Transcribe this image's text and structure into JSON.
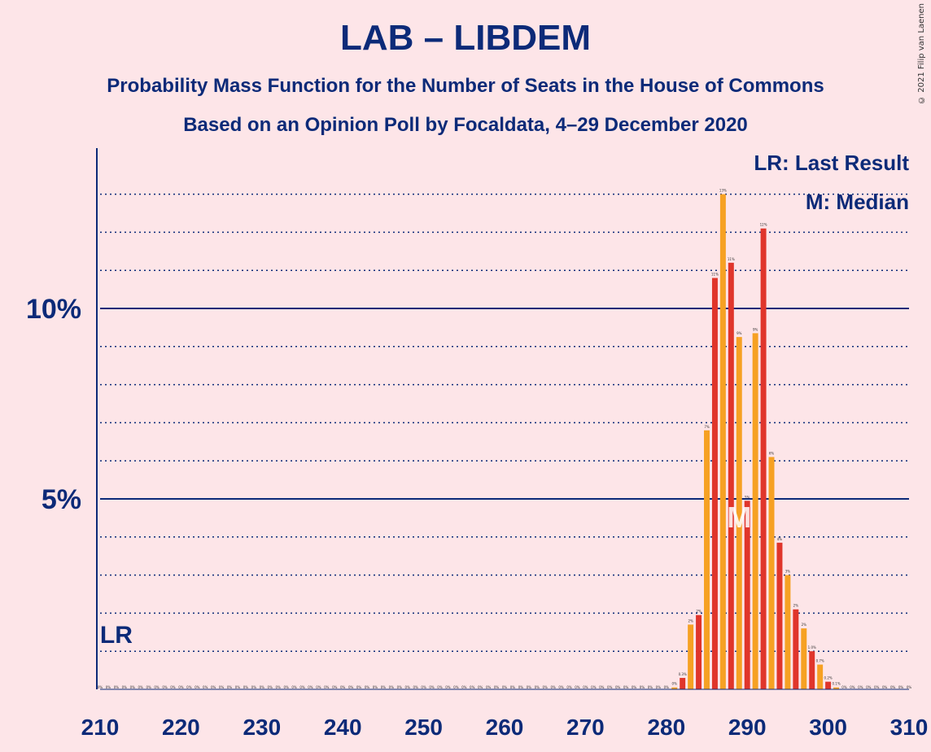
{
  "header": {
    "title": "LAB – LIBDEM",
    "subtitle": "Probability Mass Function for the Number of Seats in the House of Commons",
    "source": "Based on an Opinion Poll by Focaldata, 4–29 December 2020",
    "copyright": "© 2021 Filip van Laenen"
  },
  "legend": {
    "last_result": "LR: Last Result",
    "median": "M: Median"
  },
  "markers": {
    "last_result_label": "LR",
    "last_result_seat": 212,
    "median_label": "M",
    "median_seat": 289
  },
  "colors": {
    "bar_a": "#F6A123",
    "bar_b": "#E0352B",
    "axis": "#0C2A78",
    "background": "#FDE5E8"
  },
  "chart_data": {
    "type": "bar",
    "title": "LAB – LIBDEM",
    "x_min": 210,
    "x_max": 310,
    "x_ticks": [
      "210",
      "220",
      "230",
      "240",
      "250",
      "260",
      "270",
      "280",
      "290",
      "300",
      "310"
    ],
    "y_ticks": [
      {
        "value": 5,
        "label": "5%"
      },
      {
        "value": 10,
        "label": "10%"
      }
    ],
    "ylim": [
      0,
      14
    ],
    "grid": "dotted every 1%, solid at 5% and 10%",
    "legend_position": "top-right",
    "seats": [
      281,
      282,
      283,
      284,
      285,
      286,
      287,
      288,
      289,
      290,
      291,
      292,
      293,
      294,
      295,
      296,
      297,
      298,
      299,
      300,
      301
    ],
    "values": [
      0.05,
      0.3,
      1.7,
      1.95,
      6.8,
      10.8,
      13.0,
      11.2,
      9.25,
      4.95,
      9.35,
      12.1,
      6.1,
      3.85,
      3.0,
      2.1,
      1.6,
      1.0,
      0.65,
      0.2,
      0.05
    ],
    "value_labels": [
      "0%",
      "0.3%",
      "2%",
      "2%",
      "7%",
      "11%",
      "13%",
      "11%",
      "9%",
      "5%",
      "9%",
      "12%",
      "6%",
      "4%",
      "3%",
      "2%",
      "2%",
      "1.0%",
      "0.7%",
      "0.2%",
      "0.1%"
    ],
    "zero_label": "0%"
  }
}
